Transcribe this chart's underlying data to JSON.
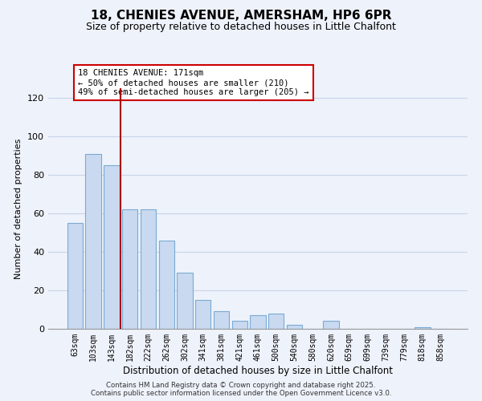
{
  "title": "18, CHENIES AVENUE, AMERSHAM, HP6 6PR",
  "subtitle": "Size of property relative to detached houses in Little Chalfont",
  "xlabel": "Distribution of detached houses by size in Little Chalfont",
  "ylabel": "Number of detached properties",
  "bar_labels": [
    "63sqm",
    "103sqm",
    "143sqm",
    "182sqm",
    "222sqm",
    "262sqm",
    "302sqm",
    "341sqm",
    "381sqm",
    "421sqm",
    "461sqm",
    "500sqm",
    "540sqm",
    "580sqm",
    "620sqm",
    "659sqm",
    "699sqm",
    "739sqm",
    "779sqm",
    "818sqm",
    "858sqm"
  ],
  "bar_values": [
    55,
    91,
    85,
    62,
    62,
    46,
    29,
    15,
    9,
    4,
    7,
    8,
    2,
    0,
    4,
    0,
    0,
    0,
    0,
    1,
    0
  ],
  "bar_color": "#c8d9f0",
  "bar_edgecolor": "#7aaad4",
  "ylim": [
    0,
    125
  ],
  "yticks": [
    0,
    20,
    40,
    60,
    80,
    100,
    120
  ],
  "grid_color": "#c8d4e8",
  "bg_color": "#eef2fa",
  "vline_x_pos": 2.5,
  "vline_color": "#aa0000",
  "annotation_text": "18 CHENIES AVENUE: 171sqm\n← 50% of detached houses are smaller (210)\n49% of semi-detached houses are larger (205) →",
  "annotation_box_facecolor": "#ffffff",
  "annotation_box_edgecolor": "#cc0000",
  "footer_line1": "Contains HM Land Registry data © Crown copyright and database right 2025.",
  "footer_line2": "Contains public sector information licensed under the Open Government Licence v3.0.",
  "title_fontsize": 11,
  "subtitle_fontsize": 9,
  "annotation_fontsize": 7.5,
  "ylabel_fontsize": 8,
  "xlabel_fontsize": 8.5
}
